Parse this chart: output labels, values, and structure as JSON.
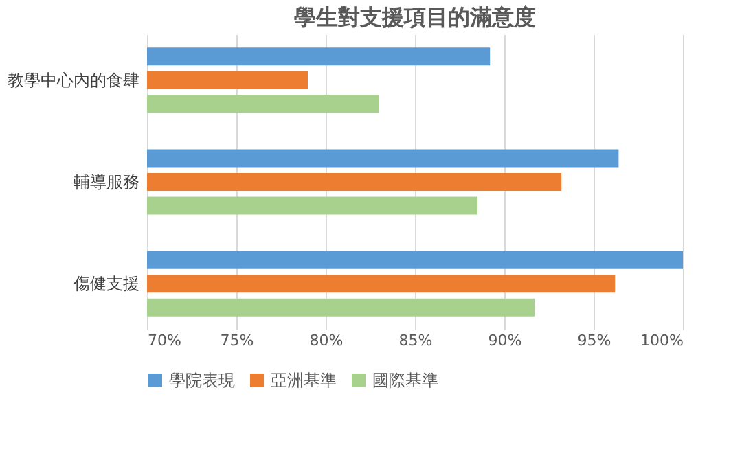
{
  "chart_data": {
    "type": "bar",
    "orientation": "horizontal",
    "title": "學生對支援項目的滿意度",
    "categories": [
      "教學中心內的食肆",
      "輔導服務",
      "傷健支援"
    ],
    "series": [
      {
        "name": "學院表現",
        "color": "#5b9bd5",
        "values": [
          89.2,
          96.4,
          100
        ]
      },
      {
        "name": "亞洲基準",
        "color": "#ed7d31",
        "values": [
          79.0,
          93.2,
          96.2
        ]
      },
      {
        "name": "國際基準",
        "color": "#a9d18e",
        "values": [
          83.0,
          88.5,
          91.7
        ]
      }
    ],
    "xlim": [
      70,
      100
    ],
    "xticks": [
      {
        "value": 70,
        "label": "70%"
      },
      {
        "value": 75,
        "label": "75%"
      },
      {
        "value": 80,
        "label": "80%"
      },
      {
        "value": 85,
        "label": "85%"
      },
      {
        "value": 90,
        "label": "90%"
      },
      {
        "value": 95,
        "label": "95%"
      },
      {
        "value": 100,
        "label": "100%"
      }
    ],
    "grid": "x",
    "legend": "bottom"
  }
}
